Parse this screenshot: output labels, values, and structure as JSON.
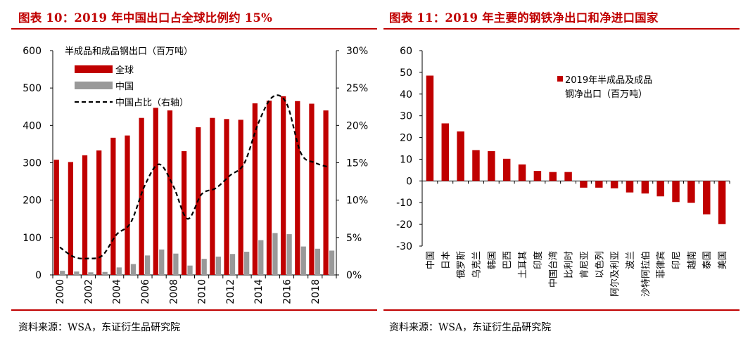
{
  "colors": {
    "title": "#c00000",
    "bar_red": "#c00000",
    "bar_gray": "#999999",
    "line": "#000000"
  },
  "chart_data": [
    {
      "type": "bar",
      "title": "图表 10：2019 年中国出口占全球比例约 15%",
      "ylabel": "半成品和成品钢出口（百万吨）",
      "source": "资料来源：WSA，东证衍生品研究院",
      "categories": [
        "2000",
        "2001",
        "2002",
        "2003",
        "2004",
        "2005",
        "2006",
        "2007",
        "2008",
        "2009",
        "2010",
        "2011",
        "2012",
        "2013",
        "2014",
        "2015",
        "2016",
        "2017",
        "2018",
        "2019"
      ],
      "x_tick_labels": [
        "2000",
        "2002",
        "2004",
        "2006",
        "2008",
        "2010",
        "2012",
        "2014",
        "2016",
        "2018"
      ],
      "series": [
        {
          "name": "全球",
          "axis": "left",
          "values": [
            308,
            302,
            320,
            333,
            367,
            373,
            420,
            447,
            440,
            331,
            395,
            420,
            417,
            415,
            459,
            466,
            478,
            465,
            458,
            440
          ]
        },
        {
          "name": "中国",
          "axis": "left",
          "values": [
            11,
            9,
            7,
            8,
            20,
            29,
            52,
            68,
            57,
            25,
            43,
            49,
            56,
            62,
            93,
            112,
            109,
            76,
            70,
            65
          ]
        },
        {
          "name": "中国占比（右轴）",
          "axis": "right",
          "type": "line",
          "values": [
            3.7,
            2.4,
            2.2,
            2.6,
            5.4,
            7.0,
            12.0,
            14.8,
            11.9,
            7.5,
            10.8,
            11.6,
            13.3,
            14.9,
            20.3,
            23.8,
            22.9,
            16.3,
            15.0,
            14.4
          ]
        }
      ],
      "y_left": {
        "range": [
          0,
          600
        ],
        "ticks": [
          "0",
          "100",
          "200",
          "300",
          "400",
          "500",
          "600"
        ]
      },
      "y_right": {
        "range": [
          0,
          30
        ],
        "ticks": [
          "0%",
          "5%",
          "10%",
          "15%",
          "20%",
          "25%",
          "30%"
        ]
      },
      "legend_position": "top-left"
    },
    {
      "type": "bar",
      "title": "图表 11：2019 年主要的钢铁净出口和净进口国家",
      "source": "资料来源：WSA，东证衍生品研究院",
      "categories": [
        "中国",
        "日本",
        "俄罗斯",
        "乌克兰",
        "韩国",
        "巴西",
        "土耳其",
        "印度",
        "中国台湾",
        "比利时",
        "肯尼亚",
        "以色列",
        "阿尔及利亚",
        "波兰",
        "沙特阿拉伯",
        "菲律宾",
        "印尼",
        "越南",
        "泰国",
        "美国"
      ],
      "series": [
        {
          "name": "2019年半成品及成品钢净出口（百万吨）",
          "legend_line1": "2019年半成品及成品",
          "legend_line2": "钢净出口（百万吨）",
          "values": [
            48.5,
            26.5,
            22.8,
            14.2,
            13.7,
            10.2,
            7.6,
            4.6,
            4.1,
            4.1,
            -3.1,
            -3.1,
            -3.4,
            -5.3,
            -5.8,
            -7.1,
            -9.7,
            -10.1,
            -15.4,
            -19.9
          ]
        }
      ],
      "y": {
        "range": [
          -30,
          60
        ],
        "ticks": [
          "-30",
          "-20",
          "-10",
          "0",
          "10",
          "20",
          "30",
          "40",
          "50",
          "60"
        ]
      },
      "legend_position": "top-right"
    }
  ]
}
